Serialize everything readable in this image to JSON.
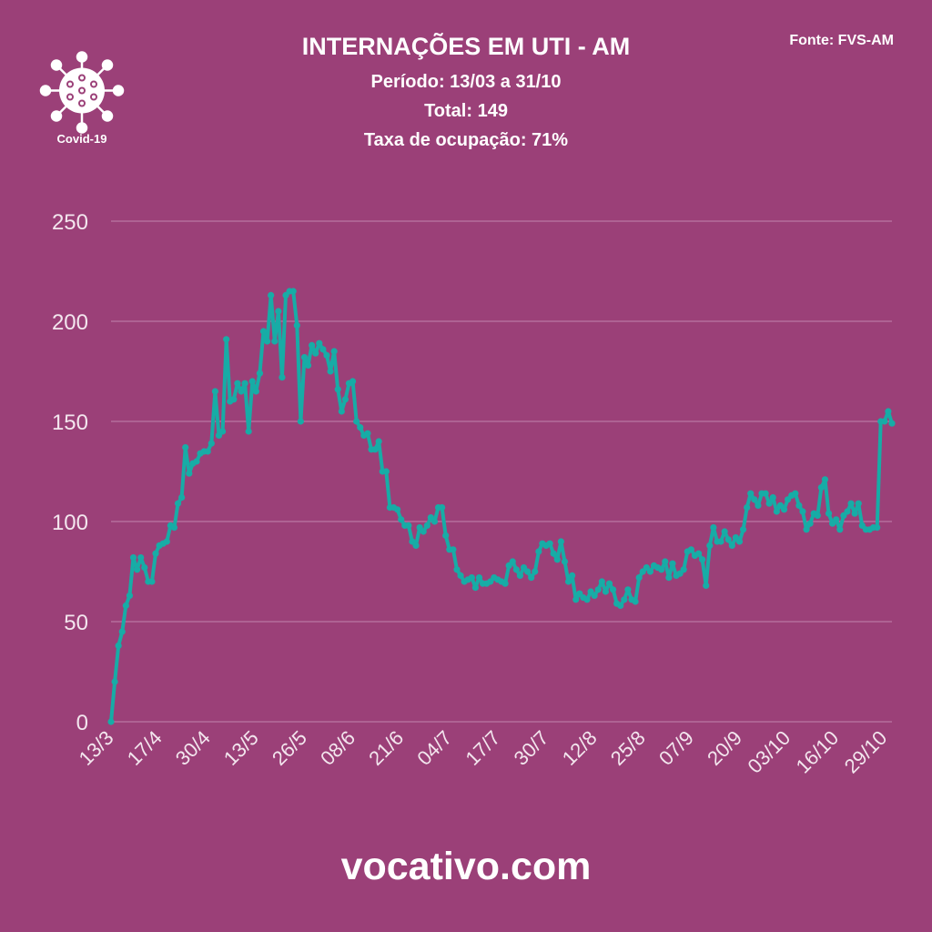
{
  "header": {
    "title": "INTERNAÇÕES EM UTI - AM",
    "period": "Período: 13/03 a 31/10",
    "total": "Total: 149",
    "occupancy": "Taxa de ocupação: 71%",
    "source": "Fonte: FVS-AM"
  },
  "logo": {
    "icon": "virus-icon",
    "label": "Covid-19"
  },
  "footer": {
    "site": "vocativo.com"
  },
  "colors": {
    "background": "#9b4078",
    "line": "#17aca6",
    "grid": "#b46d9c"
  },
  "chart_data": {
    "type": "line",
    "title": "INTERNAÇÕES EM UTI - AM",
    "xlabel": "",
    "ylabel": "",
    "ylim": [
      0,
      250
    ],
    "yticks": [
      0,
      50,
      100,
      150,
      200,
      250
    ],
    "grid": true,
    "markers": true,
    "x_tick_labels": [
      "13/3",
      "17/4",
      "30/4",
      "13/5",
      "26/5",
      "08/6",
      "21/6",
      "04/7",
      "17/7",
      "30/7",
      "12/8",
      "25/8",
      "07/9",
      "20/9",
      "03/10",
      "16/10",
      "29/10"
    ],
    "x_tick_every": 13,
    "values": [
      0,
      20,
      38,
      45,
      58,
      63,
      82,
      76,
      82,
      77,
      70,
      70,
      84,
      88,
      89,
      90,
      98,
      97,
      109,
      112,
      137,
      124,
      129,
      130,
      134,
      135,
      135,
      139,
      165,
      143,
      145,
      191,
      160,
      161,
      169,
      165,
      169,
      145,
      170,
      165,
      174,
      195,
      190,
      213,
      190,
      205,
      172,
      213,
      215,
      215,
      198,
      150,
      182,
      178,
      188,
      184,
      189,
      186,
      183,
      175,
      185,
      166,
      155,
      161,
      169,
      170,
      150,
      147,
      143,
      144,
      136,
      136,
      140,
      125,
      125,
      107,
      107,
      106,
      101,
      98,
      98,
      90,
      88,
      97,
      95,
      98,
      102,
      100,
      107,
      107,
      93,
      86,
      86,
      76,
      73,
      70,
      71,
      72,
      67,
      72,
      69,
      69,
      70,
      72,
      71,
      70,
      69,
      78,
      80,
      76,
      73,
      77,
      75,
      72,
      75,
      85,
      89,
      88,
      89,
      84,
      81,
      90,
      80,
      70,
      73,
      61,
      64,
      62,
      61,
      65,
      63,
      66,
      70,
      65,
      69,
      66,
      59,
      58,
      61,
      66,
      61,
      60,
      72,
      75,
      77,
      75,
      78,
      77,
      76,
      80,
      72,
      79,
      73,
      74,
      76,
      85,
      86,
      83,
      84,
      81,
      68,
      88,
      97,
      90,
      90,
      95,
      91,
      88,
      92,
      90,
      96,
      107,
      114,
      111,
      108,
      114,
      114,
      109,
      112,
      105,
      108,
      106,
      111,
      113,
      114,
      108,
      105,
      96,
      99,
      104,
      103,
      117,
      121,
      104,
      99,
      101,
      96,
      103,
      105,
      109,
      104,
      109,
      98,
      96,
      96,
      97,
      97,
      150,
      150,
      155,
      149
    ]
  }
}
